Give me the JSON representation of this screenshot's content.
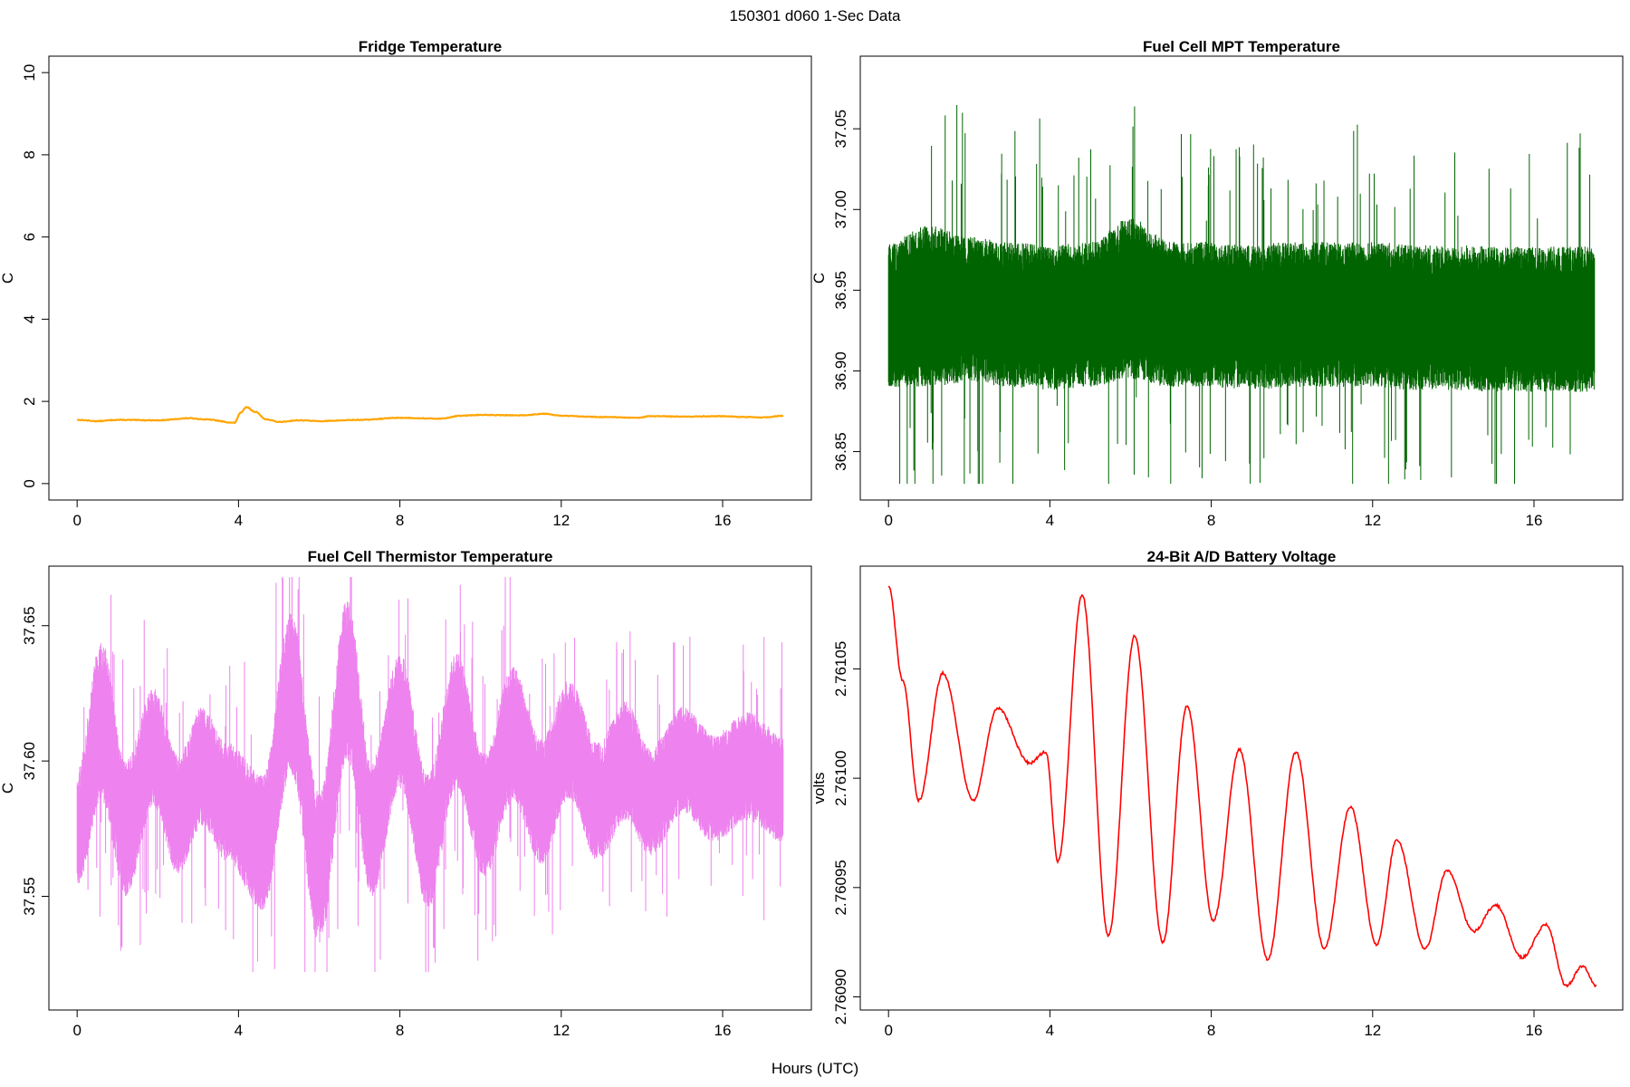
{
  "figure": {
    "title": "150301   d060   1-Sec Data",
    "xlabel": "Hours (UTC)"
  },
  "chart_data": [
    {
      "type": "line",
      "title": "Fridge Temperature",
      "xlabel": "",
      "ylabel": "C",
      "xlim": [
        -0.7,
        18.2
      ],
      "ylim": [
        -0.4,
        10.4
      ],
      "xticks": [
        0,
        4,
        8,
        12,
        16
      ],
      "yticks": [
        0,
        2,
        4,
        6,
        8,
        10
      ],
      "ytick_labels": [
        "0",
        "2",
        "4",
        "6",
        "8",
        "10"
      ],
      "grid": false,
      "color": "#FFA500",
      "series": [
        {
          "x": [
            0,
            0.5,
            1,
            2,
            2.8,
            3.2,
            3.9,
            4.05,
            4.2,
            4.4,
            4.7,
            5,
            5.5,
            6,
            7,
            8,
            9,
            9.5,
            10,
            11,
            11.6,
            12,
            13,
            13.9,
            14.2,
            15,
            16,
            16.5,
            17,
            17.5
          ],
          "y": [
            1.55,
            1.52,
            1.55,
            1.54,
            1.59,
            1.56,
            1.48,
            1.72,
            1.86,
            1.75,
            1.56,
            1.5,
            1.54,
            1.52,
            1.55,
            1.6,
            1.58,
            1.65,
            1.67,
            1.66,
            1.7,
            1.65,
            1.62,
            1.6,
            1.64,
            1.63,
            1.64,
            1.62,
            1.61,
            1.65
          ]
        }
      ]
    },
    {
      "type": "line",
      "title": "Fuel Cell MPT Temperature",
      "xlabel": "",
      "ylabel": "C",
      "xlim": [
        -0.7,
        18.2
      ],
      "ylim": [
        36.82,
        37.095
      ],
      "xticks": [
        0,
        4,
        8,
        12,
        16
      ],
      "yticks": [
        36.85,
        36.9,
        36.95,
        37.0,
        37.05
      ],
      "ytick_labels": [
        "36.85",
        "36.90",
        "36.95",
        "37.00",
        "37.05"
      ],
      "grid": false,
      "color": "#006400",
      "noise_band": {
        "x": [
          0,
          1,
          2,
          3,
          4,
          5,
          6,
          7,
          8,
          9,
          10,
          11,
          12,
          13,
          14,
          15,
          16,
          17,
          17.5
        ],
        "center": [
          36.935,
          36.94,
          36.938,
          36.935,
          36.933,
          36.935,
          36.945,
          36.935,
          36.935,
          36.933,
          36.935,
          36.935,
          36.935,
          36.933,
          36.933,
          36.932,
          36.932,
          36.932,
          36.932
        ],
        "half_width": [
          0.045,
          0.05,
          0.045,
          0.045,
          0.045,
          0.045,
          0.05,
          0.045,
          0.045,
          0.045,
          0.045,
          0.045,
          0.045,
          0.045,
          0.045,
          0.045,
          0.045,
          0.045,
          0.045
        ],
        "min": 36.83,
        "max": 37.09
      }
    },
    {
      "type": "line",
      "title": "Fuel Cell Thermistor Temperature",
      "xlabel": "",
      "ylabel": "C",
      "xlim": [
        -0.7,
        18.2
      ],
      "ylim": [
        37.508,
        37.672
      ],
      "xticks": [
        0,
        4,
        8,
        12,
        16
      ],
      "yticks": [
        37.55,
        37.6,
        37.65
      ],
      "ytick_labels": [
        "37.55",
        "37.60",
        "37.65"
      ],
      "grid": false,
      "color": "#EE82EE",
      "noise_band": {
        "x": [
          0,
          0.6,
          1.2,
          1.9,
          2.5,
          3.1,
          3.7,
          4.6,
          5.3,
          6.0,
          6.7,
          7.3,
          8.0,
          8.7,
          9.4,
          10.1,
          10.8,
          11.5,
          12.2,
          12.9,
          13.6,
          14.2,
          15,
          15.8,
          16.6,
          17.5
        ],
        "center": [
          37.575,
          37.615,
          37.575,
          37.605,
          37.58,
          37.598,
          37.585,
          37.57,
          37.625,
          37.56,
          37.63,
          37.575,
          37.615,
          37.57,
          37.615,
          37.58,
          37.61,
          37.585,
          37.608,
          37.585,
          37.6,
          37.585,
          37.6,
          37.59,
          37.598,
          37.59
        ],
        "half_width": [
          0.022,
          0.03,
          0.025,
          0.022,
          0.022,
          0.022,
          0.022,
          0.025,
          0.03,
          0.028,
          0.03,
          0.025,
          0.025,
          0.025,
          0.025,
          0.023,
          0.025,
          0.023,
          0.022,
          0.022,
          0.022,
          0.02,
          0.02,
          0.02,
          0.02,
          0.02
        ],
        "min": 37.522,
        "max": 37.668
      }
    },
    {
      "type": "line",
      "title": "24-Bit A/D Battery Voltage",
      "xlabel": "",
      "ylabel": "volts",
      "xlim": [
        -0.7,
        18.2
      ],
      "ylim": [
        2.760894,
        2.761097
      ],
      "xticks": [
        0,
        4,
        8,
        12,
        16
      ],
      "yticks": [
        2.7609,
        2.76095,
        2.761,
        2.76105
      ],
      "ytick_labels": [
        "2.76090",
        "2.76095",
        "2.76100",
        "2.76105"
      ],
      "grid": false,
      "color": "#FF0000",
      "series": [
        {
          "x": [
            0,
            0.35,
            0.75,
            1.35,
            2.1,
            2.7,
            3.5,
            3.9,
            4.2,
            4.8,
            5.45,
            6.1,
            6.8,
            7.4,
            8.05,
            8.7,
            9.4,
            10.1,
            10.8,
            11.45,
            12.1,
            12.6,
            13.3,
            13.85,
            14.5,
            15.05,
            15.7,
            16.3,
            16.8,
            17.2,
            17.55
          ],
          "y": [
            2.761088,
            2.761045,
            2.76099,
            2.761048,
            2.76099,
            2.761032,
            2.761007,
            2.761012,
            2.760962,
            2.761084,
            2.760928,
            2.761065,
            2.760925,
            2.761033,
            2.760935,
            2.761013,
            2.760917,
            2.761012,
            2.760922,
            2.760987,
            2.760924,
            2.760972,
            2.760922,
            2.760958,
            2.76093,
            2.760942,
            2.760918,
            2.760933,
            2.760905,
            2.760914,
            2.760905
          ]
        }
      ]
    }
  ]
}
